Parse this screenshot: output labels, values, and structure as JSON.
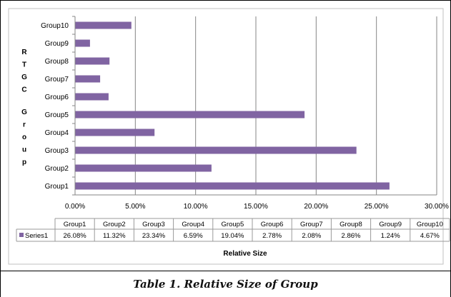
{
  "caption": "Table 1. Relative Size of Group",
  "chart_data": {
    "type": "bar",
    "orientation": "horizontal",
    "categories": [
      "Group1",
      "Group2",
      "Group3",
      "Group4",
      "Group5",
      "Group6",
      "Group7",
      "Group8",
      "Group9",
      "Group10"
    ],
    "series": [
      {
        "name": "Series1",
        "values": [
          26.08,
          11.32,
          23.34,
          6.59,
          19.04,
          2.78,
          2.08,
          2.86,
          1.24,
          4.67
        ],
        "value_labels": [
          "26.08%",
          "11.32%",
          "23.34%",
          "6.59%",
          "19.04%",
          "2.78%",
          "2.08%",
          "2.86%",
          "1.24%",
          "4.67%"
        ]
      }
    ],
    "xlabel": "Relative Size",
    "ylabel": "RTGC Group",
    "xlim": [
      0,
      30
    ],
    "xticks": [
      "0.00%",
      "5.00%",
      "10.00%",
      "15.00%",
      "20.00%",
      "25.00%",
      "30.00%"
    ],
    "grid": "vertical major gridlines",
    "data_table": true,
    "bar_color": "#8064a2",
    "border_color": "#c0c0c0"
  }
}
